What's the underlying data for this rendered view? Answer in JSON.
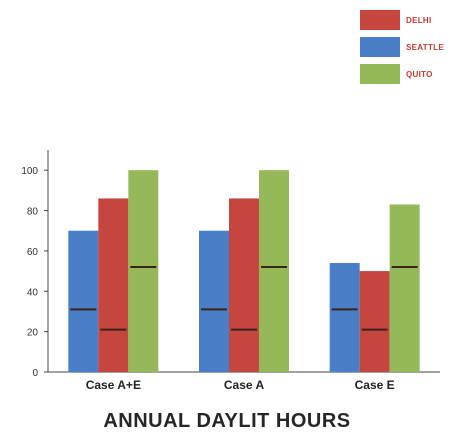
{
  "chart_data": {
    "type": "bar",
    "title": "ANNUAL DAYLIT HOURS",
    "categories": [
      "Case A+E",
      "Case A",
      "Case E"
    ],
    "series": [
      {
        "name": "SEATTLE",
        "color": "#4a7ec8",
        "values": [
          70,
          70,
          54
        ],
        "markers": [
          31,
          31,
          31
        ]
      },
      {
        "name": "DELHI",
        "color": "#c5453f",
        "values": [
          86,
          86,
          50
        ],
        "markers": [
          21,
          21,
          21
        ]
      },
      {
        "name": "QUITO",
        "color": "#95b958",
        "values": [
          100,
          100,
          83
        ],
        "markers": [
          52,
          52,
          52
        ]
      }
    ],
    "legend_order": [
      "DELHI",
      "SEATTLE",
      "QUITO"
    ],
    "legend_placement": "top-right",
    "ylim": [
      0,
      110
    ],
    "yticks": [
      0,
      20,
      40,
      60,
      80,
      100
    ],
    "grid": false,
    "xlabel": "",
    "ylabel": ""
  }
}
